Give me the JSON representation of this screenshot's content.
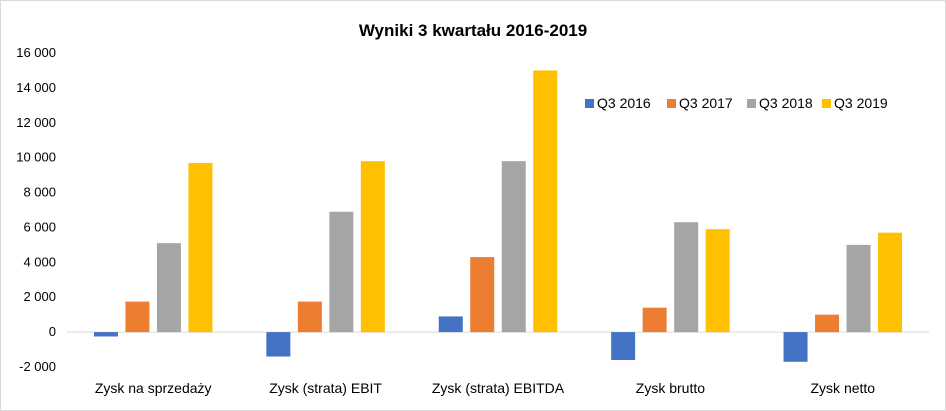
{
  "chart_data": {
    "type": "bar",
    "title": "Wyniki 3 kwartału 2016-2019",
    "xlabel": "",
    "ylabel": "",
    "ylim": [
      -2000,
      16000
    ],
    "yticks": [
      -2000,
      0,
      2000,
      4000,
      6000,
      8000,
      10000,
      12000,
      14000,
      16000
    ],
    "ytick_labels": [
      "-2 000",
      "0",
      "2 000",
      "4 000",
      "6 000",
      "8 000",
      "10 000",
      "12 000",
      "14 000",
      "16 000"
    ],
    "grid": false,
    "legend_position": "right",
    "categories": [
      "Zysk na sprzedaży",
      "Zysk (strata) EBIT",
      "Zysk (strata) EBITDA",
      "Zysk brutto",
      "Zysk netto"
    ],
    "series": [
      {
        "name": "Q3 2016",
        "color": "#4472C4",
        "values": [
          -250,
          -1400,
          900,
          -1600,
          -1700
        ]
      },
      {
        "name": "Q3 2017",
        "color": "#ED7D31",
        "values": [
          1750,
          1750,
          4300,
          1400,
          1000
        ]
      },
      {
        "name": "Q3 2018",
        "color": "#A5A5A5",
        "values": [
          5100,
          6900,
          9800,
          6300,
          5000
        ]
      },
      {
        "name": "Q3 2019",
        "color": "#FFC000",
        "values": [
          9700,
          9800,
          15000,
          5900,
          5700
        ]
      }
    ]
  }
}
